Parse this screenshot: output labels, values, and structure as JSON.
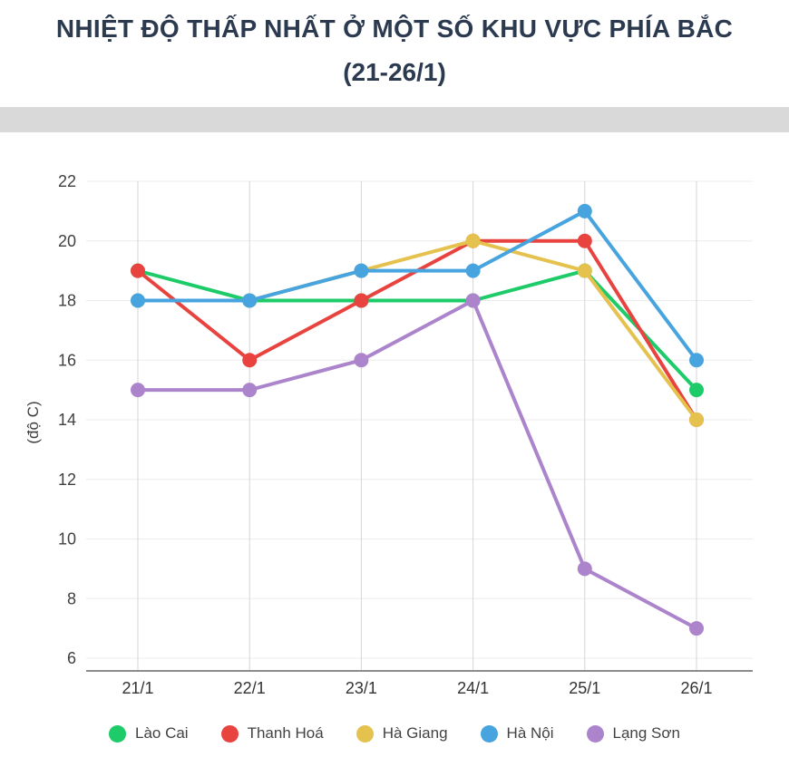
{
  "header": {
    "title_line1": "NHIỆT ĐỘ THẤP NHẤT Ở MỘT SỐ KHU VỰC PHÍA BẮC",
    "title_line2": "(21-26/1)"
  },
  "chart_data": {
    "type": "line",
    "title": "NHIỆT ĐỘ THẤP NHẤT Ở MỘT SỐ KHU VỰC PHÍA BẮC (21-26/1)",
    "categories": [
      "21/1",
      "22/1",
      "23/1",
      "24/1",
      "25/1",
      "26/1"
    ],
    "series": [
      {
        "name": "Lào Cai",
        "color": "#1ecb69",
        "values": [
          19,
          18,
          18,
          18,
          19,
          15
        ]
      },
      {
        "name": "Thanh Hoá",
        "color": "#e8433e",
        "values": [
          19,
          16,
          18,
          20,
          20,
          14
        ]
      },
      {
        "name": "Hà Giang",
        "color": "#e5c14d",
        "values": [
          18,
          18,
          19,
          20,
          19,
          14
        ]
      },
      {
        "name": "Hà Nội",
        "color": "#47a4de",
        "values": [
          18,
          18,
          19,
          19,
          21,
          16
        ]
      },
      {
        "name": "Lạng Sơn",
        "color": "#ab84cc",
        "values": [
          15,
          15,
          16,
          18,
          9,
          7
        ]
      }
    ],
    "xlabel": "",
    "ylabel": "(độ C)",
    "yticks": [
      6,
      8,
      10,
      12,
      14,
      16,
      18,
      20,
      22
    ],
    "ylim": [
      6,
      22
    ],
    "grid": true,
    "legend_position": "bottom"
  }
}
